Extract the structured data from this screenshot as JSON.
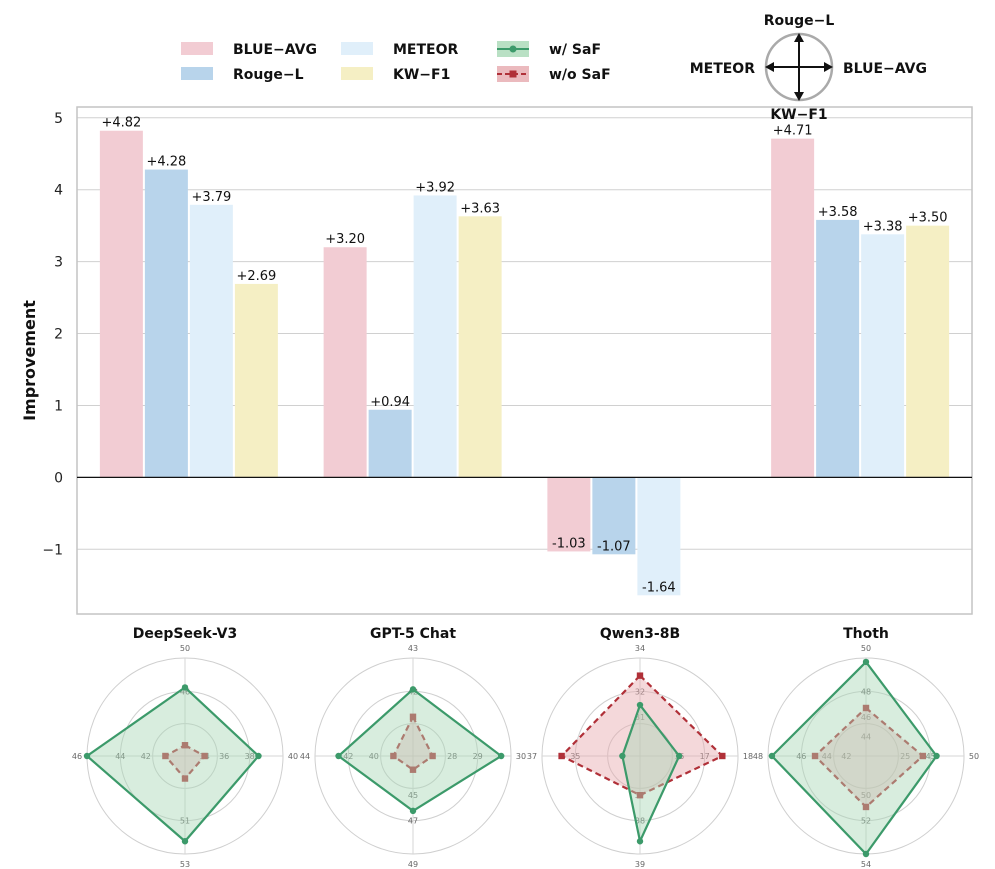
{
  "chart_data": {
    "type": "bar",
    "ylabel": "Improvement",
    "ylim": [
      -1.9,
      5.15
    ],
    "yticks": [
      -1,
      0,
      1,
      2,
      3,
      4,
      5
    ],
    "ytick_labels": [
      "−1",
      "0",
      "1",
      "2",
      "3",
      "4",
      "5"
    ],
    "grid": true,
    "categories": [
      "DeepSeek-V3",
      "GPT-5 Chat",
      "Qwen3-8B",
      "Thoth"
    ],
    "series": [
      {
        "name": "BLUE−AVG",
        "color": "#f2ccd3",
        "values": [
          4.82,
          3.2,
          -1.03,
          4.71
        ],
        "labels": [
          "+4.82",
          "+3.20",
          "-1.03",
          "+4.71"
        ]
      },
      {
        "name": "Rouge−L",
        "color": "#b8d4eb",
        "values": [
          4.28,
          0.94,
          -1.07,
          3.58
        ],
        "labels": [
          "+4.28",
          "+0.94",
          "-1.07",
          "+3.58"
        ]
      },
      {
        "name": "METEOR",
        "color": "#e0effa",
        "values": [
          3.79,
          3.92,
          -1.64,
          3.38
        ],
        "labels": [
          "+3.79",
          "+3.92",
          "-1.64",
          "+3.38"
        ]
      },
      {
        "name": "KW−F1",
        "color": "#f5efc4",
        "values": [
          2.69,
          3.63,
          0,
          3.5
        ],
        "labels": [
          "+2.69",
          "+3.63",
          "",
          "+3.50"
        ]
      }
    ],
    "legend": {
      "placement": "top",
      "items": [
        {
          "label": "BLUE−AVG",
          "color": "#f2ccd3",
          "kind": "patch"
        },
        {
          "label": "METEOR",
          "color": "#e0effa",
          "kind": "patch"
        },
        {
          "label": "w/ SaF",
          "color": "#3c9a6a",
          "fill": "#a8d8b5",
          "kind": "line-circle"
        },
        {
          "label": "Rouge−L",
          "color": "#b8d4eb",
          "kind": "patch"
        },
        {
          "label": "KW−F1",
          "color": "#f5efc4",
          "kind": "patch"
        },
        {
          "label": "w/o SaF",
          "color": "#b03038",
          "fill": "#e6a9ae",
          "kind": "dash-square"
        }
      ]
    },
    "axis_key": {
      "top": "Rouge−L",
      "left": "METEOR",
      "right": "BLUE−AVG",
      "bottom": "KW−F1",
      "placement": "top-right"
    },
    "radars": [
      {
        "title": "DeepSeek-V3",
        "axes": [
          "Rouge-L",
          "BLUE-AVG",
          "KW-F1",
          "METEOR"
        ],
        "tick_labels": [
          [
            "50",
            "46"
          ],
          [
            "40",
            "38",
            "36",
            "34"
          ],
          [
            "53",
            "51"
          ],
          [
            "46",
            "44",
            "42"
          ]
        ],
        "with_saf": [
          0.7,
          0.75,
          0.87,
          1.0
        ],
        "without_saf": [
          0.11,
          0.2,
          0.23,
          0.2
        ]
      },
      {
        "title": "GPT-5 Chat",
        "axes": [
          "Rouge-L",
          "BLUE-AVG",
          "KW-F1",
          "METEOR"
        ],
        "tick_labels": [
          [
            "43",
            "42"
          ],
          [
            "30",
            "29",
            "28"
          ],
          [
            "49",
            "47",
            "45"
          ],
          [
            "44",
            "42",
            "40"
          ]
        ],
        "with_saf": [
          0.68,
          0.9,
          0.56,
          0.76
        ],
        "without_saf": [
          0.4,
          0.2,
          0.14,
          0.2
        ]
      },
      {
        "title": "Qwen3-8B",
        "axes": [
          "Rouge-L",
          "BLUE-AVG",
          "KW-F1",
          "METEOR"
        ],
        "tick_labels": [
          [
            "34",
            "32",
            "31"
          ],
          [
            "18",
            "17",
            "16"
          ],
          [
            "39",
            "38",
            "37"
          ],
          [
            "37",
            "35"
          ]
        ],
        "with_saf": [
          0.52,
          0.4,
          0.87,
          0.18
        ],
        "without_saf": [
          0.82,
          0.84,
          0.4,
          0.8
        ]
      },
      {
        "title": "Thoth",
        "axes": [
          "Rouge-L",
          "BLUE-AVG",
          "KW-F1",
          "METEOR"
        ],
        "tick_labels": [
          [
            "50",
            "48",
            "46",
            "44"
          ],
          [
            "50",
            "45",
            "25"
          ],
          [
            "54",
            "52",
            "50"
          ],
          [
            "48",
            "46",
            "44",
            "42"
          ]
        ],
        "with_saf": [
          0.96,
          0.72,
          1.0,
          0.96
        ],
        "without_saf": [
          0.49,
          0.58,
          0.52,
          0.52
        ]
      }
    ]
  }
}
